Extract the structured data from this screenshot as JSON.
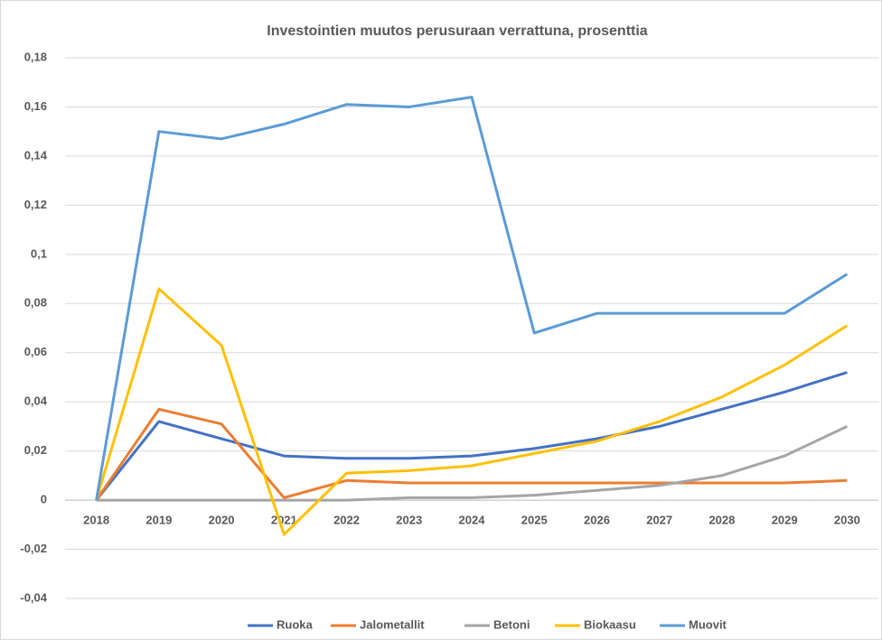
{
  "chart_data": {
    "type": "line",
    "title": "Investointien muutos perusuraan verrattuna, prosenttia",
    "categories": [
      "2018",
      "2019",
      "2020",
      "2021",
      "2022",
      "2023",
      "2024",
      "2025",
      "2026",
      "2027",
      "2028",
      "2029",
      "2030"
    ],
    "series": [
      {
        "name": "Ruoka",
        "color": "#4472c4",
        "values": [
          0,
          0.032,
          0.025,
          0.018,
          0.017,
          0.017,
          0.018,
          0.021,
          0.025,
          0.03,
          0.037,
          0.044,
          0.052
        ]
      },
      {
        "name": "Jalometallit",
        "color": "#ed7d31",
        "values": [
          0,
          0.037,
          0.031,
          0.001,
          0.008,
          0.007,
          0.007,
          0.007,
          0.007,
          0.007,
          0.007,
          0.007,
          0.008
        ]
      },
      {
        "name": "Betoni",
        "color": "#a5a5a5",
        "values": [
          0,
          0,
          0,
          0,
          0,
          0.001,
          0.001,
          0.002,
          0.004,
          0.006,
          0.01,
          0.018,
          0.03
        ]
      },
      {
        "name": "Biokaasu",
        "color": "#ffc000",
        "values": [
          0,
          0.086,
          0.063,
          -0.014,
          0.011,
          0.012,
          0.014,
          0.019,
          0.024,
          0.032,
          0.042,
          0.055,
          0.071
        ]
      },
      {
        "name": "Muovit",
        "color": "#5b9bd5",
        "values": [
          0,
          0.15,
          0.147,
          0.153,
          0.161,
          0.16,
          0.164,
          0.068,
          0.076,
          0.076,
          0.076,
          0.076,
          0.092
        ]
      }
    ],
    "ylim": [
      -0.04,
      0.18
    ],
    "yticks": [
      {
        "value": -0.04,
        "label": "-0,04"
      },
      {
        "value": -0.02,
        "label": "-0,02"
      },
      0,
      {
        "value": 0.02,
        "label": "0,02"
      },
      {
        "value": 0.04,
        "label": "0,04"
      },
      {
        "value": 0.06,
        "label": "0,06"
      },
      {
        "value": 0.08,
        "label": "0,08"
      },
      {
        "value": 0.1,
        "label": "0,1"
      },
      {
        "value": 0.12,
        "label": "0,12"
      },
      {
        "value": 0.14,
        "label": "0,14"
      },
      {
        "value": 0.16,
        "label": "0,16"
      },
      {
        "value": 0.18,
        "label": "0,18"
      }
    ],
    "grid": true,
    "legend": "bottom"
  }
}
